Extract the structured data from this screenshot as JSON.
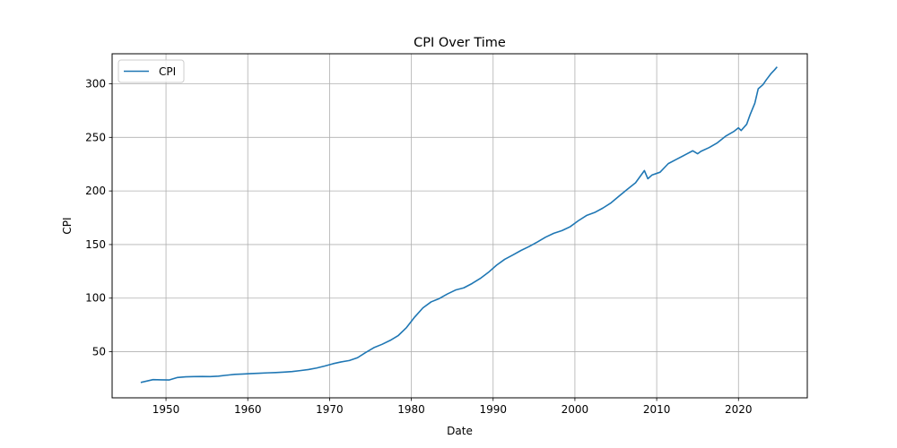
{
  "chart_data": {
    "type": "line",
    "title": "CPI Over Time",
    "xlabel": "Date",
    "ylabel": "CPI",
    "x_axis": "date",
    "xlim": [
      "1943-06-01",
      "2028-06-01"
    ],
    "ylim": [
      7,
      328
    ],
    "xticks": [
      {
        "date": "1950-01-01",
        "label": "1950"
      },
      {
        "date": "1960-01-01",
        "label": "1960"
      },
      {
        "date": "1970-01-01",
        "label": "1970"
      },
      {
        "date": "1980-01-01",
        "label": "1980"
      },
      {
        "date": "1990-01-01",
        "label": "1990"
      },
      {
        "date": "2000-01-01",
        "label": "2000"
      },
      {
        "date": "2010-01-01",
        "label": "2010"
      },
      {
        "date": "2020-01-01",
        "label": "2020"
      }
    ],
    "yticks": [
      50,
      100,
      150,
      200,
      250,
      300
    ],
    "grid": true,
    "legend_position": "top-left",
    "series": [
      {
        "name": "CPI",
        "color": "#1f77b4",
        "points": [
          [
            "1947-01-01",
            21.5
          ],
          [
            "1948-06-01",
            24.0
          ],
          [
            "1949-06-01",
            23.8
          ],
          [
            "1950-06-01",
            23.7
          ],
          [
            "1951-06-01",
            26.0
          ],
          [
            "1952-06-01",
            26.6
          ],
          [
            "1953-06-01",
            26.8
          ],
          [
            "1954-06-01",
            26.9
          ],
          [
            "1955-06-01",
            26.8
          ],
          [
            "1956-06-01",
            27.2
          ],
          [
            "1957-06-01",
            28.1
          ],
          [
            "1958-06-01",
            28.9
          ],
          [
            "1959-06-01",
            29.2
          ],
          [
            "1960-06-01",
            29.6
          ],
          [
            "1961-06-01",
            29.9
          ],
          [
            "1962-06-01",
            30.3
          ],
          [
            "1963-06-01",
            30.6
          ],
          [
            "1964-06-01",
            31.0
          ],
          [
            "1965-06-01",
            31.5
          ],
          [
            "1966-06-01",
            32.4
          ],
          [
            "1967-06-01",
            33.4
          ],
          [
            "1968-06-01",
            34.8
          ],
          [
            "1969-06-01",
            36.7
          ],
          [
            "1970-06-01",
            38.8
          ],
          [
            "1971-06-01",
            40.5
          ],
          [
            "1972-06-01",
            41.8
          ],
          [
            "1973-06-01",
            44.4
          ],
          [
            "1974-06-01",
            49.3
          ],
          [
            "1975-06-01",
            53.8
          ],
          [
            "1976-06-01",
            56.9
          ],
          [
            "1977-06-01",
            60.6
          ],
          [
            "1978-06-01",
            65.2
          ],
          [
            "1979-06-01",
            72.6
          ],
          [
            "1980-06-01",
            82.4
          ],
          [
            "1981-06-01",
            90.9
          ],
          [
            "1982-06-01",
            96.5
          ],
          [
            "1983-06-01",
            99.6
          ],
          [
            "1984-06-01",
            103.9
          ],
          [
            "1985-06-01",
            107.6
          ],
          [
            "1986-06-01",
            109.6
          ],
          [
            "1987-06-01",
            113.6
          ],
          [
            "1988-06-01",
            118.3
          ],
          [
            "1989-06-01",
            124.0
          ],
          [
            "1990-06-01",
            130.7
          ],
          [
            "1991-06-01",
            136.2
          ],
          [
            "1992-06-01",
            140.3
          ],
          [
            "1993-06-01",
            144.5
          ],
          [
            "1994-06-01",
            148.2
          ],
          [
            "1995-06-01",
            152.4
          ],
          [
            "1996-06-01",
            156.9
          ],
          [
            "1997-06-01",
            160.5
          ],
          [
            "1998-06-01",
            163.0
          ],
          [
            "1999-06-01",
            166.6
          ],
          [
            "2000-06-01",
            172.2
          ],
          [
            "2001-06-01",
            177.1
          ],
          [
            "2002-06-01",
            179.9
          ],
          [
            "2003-06-01",
            184.0
          ],
          [
            "2004-06-01",
            188.9
          ],
          [
            "2005-06-01",
            195.3
          ],
          [
            "2006-06-01",
            201.6
          ],
          [
            "2007-06-01",
            207.6
          ],
          [
            "2008-07-01",
            219.0
          ],
          [
            "2008-12-01",
            211.4
          ],
          [
            "2009-06-01",
            214.8
          ],
          [
            "2010-06-01",
            217.5
          ],
          [
            "2011-06-01",
            225.5
          ],
          [
            "2012-06-01",
            229.5
          ],
          [
            "2013-06-01",
            233.5
          ],
          [
            "2014-06-01",
            237.5
          ],
          [
            "2015-01-01",
            234.7
          ],
          [
            "2015-06-01",
            237.0
          ],
          [
            "2016-06-01",
            240.5
          ],
          [
            "2017-06-01",
            244.9
          ],
          [
            "2018-06-01",
            251.0
          ],
          [
            "2019-06-01",
            255.4
          ],
          [
            "2020-01-01",
            258.9
          ],
          [
            "2020-05-01",
            256.4
          ],
          [
            "2021-01-01",
            262.2
          ],
          [
            "2021-06-01",
            271.0
          ],
          [
            "2022-01-01",
            281.9
          ],
          [
            "2022-06-01",
            295.3
          ],
          [
            "2023-01-01",
            299.2
          ],
          [
            "2023-06-01",
            303.8
          ],
          [
            "2024-01-01",
            309.7
          ],
          [
            "2024-06-01",
            313.0
          ],
          [
            "2024-09-01",
            315.3
          ]
        ]
      }
    ]
  }
}
